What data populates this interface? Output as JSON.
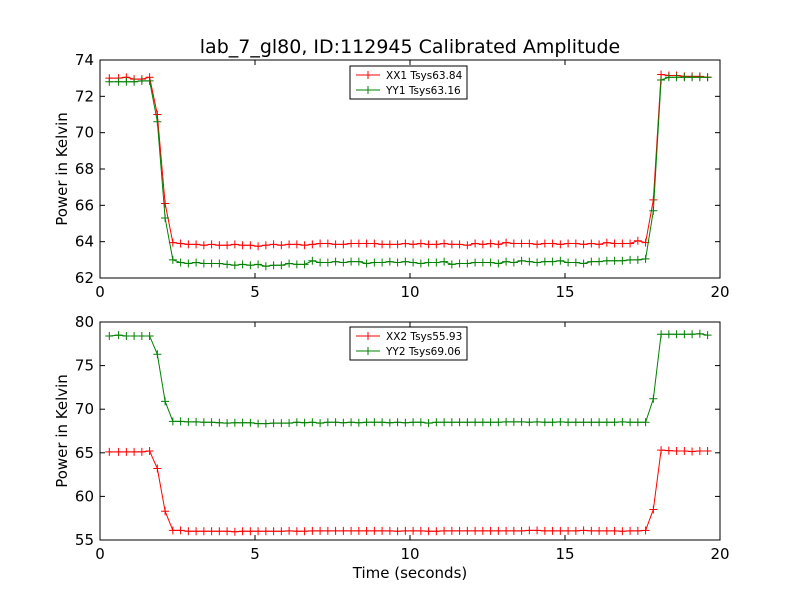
{
  "chart_data": [
    {
      "type": "line",
      "title": "lab_7_gl80, ID:112945 Calibrated Amplitude",
      "xlabel": "",
      "ylabel": "Power in Kelvin",
      "xlim": [
        0,
        20
      ],
      "ylim": [
        62,
        74
      ],
      "xticks": [
        0,
        5,
        10,
        15,
        20
      ],
      "yticks": [
        62,
        64,
        66,
        68,
        70,
        72,
        74
      ],
      "xtick_labels": [
        "0",
        "5",
        "10",
        "15",
        "20"
      ],
      "ytick_labels": [
        "62",
        "64",
        "66",
        "68",
        "70",
        "72",
        "74"
      ],
      "grid": false,
      "legend_position": "top-center",
      "x": [
        0.3,
        0.6,
        0.85,
        1.1,
        1.35,
        1.6,
        1.85,
        2.1,
        2.35,
        2.6,
        2.85,
        3.1,
        3.35,
        3.6,
        3.85,
        4.1,
        4.35,
        4.6,
        4.85,
        5.1,
        5.35,
        5.6,
        5.85,
        6.1,
        6.35,
        6.6,
        6.85,
        7.1,
        7.35,
        7.6,
        7.85,
        8.1,
        8.35,
        8.6,
        8.85,
        9.1,
        9.35,
        9.6,
        9.85,
        10.1,
        10.35,
        10.6,
        10.85,
        11.1,
        11.35,
        11.6,
        11.85,
        12.1,
        12.35,
        12.6,
        12.85,
        13.1,
        13.35,
        13.6,
        13.85,
        14.1,
        14.35,
        14.6,
        14.85,
        15.1,
        15.35,
        15.6,
        15.85,
        16.1,
        16.35,
        16.6,
        16.85,
        17.1,
        17.35,
        17.6,
        17.85,
        18.1,
        18.35,
        18.6,
        18.85,
        19.1,
        19.35,
        19.6
      ],
      "series": [
        {
          "name": "XX1 Tsys63.84",
          "color": "#ff0000",
          "values": [
            73.0,
            73.0,
            73.05,
            72.95,
            72.95,
            73.05,
            71.0,
            66.1,
            63.95,
            63.9,
            63.85,
            63.85,
            63.8,
            63.85,
            63.8,
            63.8,
            63.85,
            63.8,
            63.8,
            63.75,
            63.8,
            63.85,
            63.8,
            63.85,
            63.85,
            63.8,
            63.85,
            63.9,
            63.9,
            63.85,
            63.85,
            63.9,
            63.9,
            63.9,
            63.9,
            63.85,
            63.85,
            63.85,
            63.9,
            63.85,
            63.9,
            63.85,
            63.85,
            63.9,
            63.85,
            63.85,
            63.8,
            63.9,
            63.85,
            63.9,
            63.85,
            63.95,
            63.9,
            63.9,
            63.9,
            63.85,
            63.9,
            63.9,
            63.85,
            63.9,
            63.9,
            63.85,
            63.9,
            63.85,
            63.95,
            63.9,
            63.9,
            63.9,
            64.05,
            63.95,
            66.3,
            73.2,
            73.15,
            73.15,
            73.1,
            73.1,
            73.1,
            73.05
          ]
        },
        {
          "name": "YY1 Tsys63.16",
          "color": "#008000",
          "values": [
            72.8,
            72.8,
            72.8,
            72.8,
            72.85,
            72.85,
            70.6,
            65.3,
            63.0,
            62.85,
            62.8,
            62.85,
            62.8,
            62.8,
            62.8,
            62.75,
            62.7,
            62.75,
            62.7,
            62.75,
            62.65,
            62.7,
            62.7,
            62.8,
            62.75,
            62.75,
            62.95,
            62.85,
            62.85,
            62.9,
            62.85,
            62.9,
            62.9,
            62.8,
            62.85,
            62.85,
            62.9,
            62.85,
            62.9,
            62.85,
            62.8,
            62.85,
            62.85,
            62.9,
            62.75,
            62.8,
            62.8,
            62.85,
            62.85,
            62.85,
            62.8,
            62.9,
            62.85,
            62.95,
            62.9,
            62.85,
            62.9,
            62.9,
            62.95,
            62.85,
            62.85,
            62.8,
            62.9,
            62.9,
            62.95,
            62.95,
            62.95,
            63.0,
            63.0,
            63.05,
            65.7,
            72.9,
            73.05,
            73.05,
            73.05,
            73.05,
            73.05,
            73.05
          ]
        }
      ]
    },
    {
      "type": "line",
      "title": "",
      "xlabel": "Time (seconds)",
      "ylabel": "Power in Kelvin",
      "xlim": [
        0,
        20
      ],
      "ylim": [
        55,
        80
      ],
      "xticks": [
        0,
        5,
        10,
        15,
        20
      ],
      "yticks": [
        55,
        60,
        65,
        70,
        75,
        80
      ],
      "xtick_labels": [
        "0",
        "5",
        "10",
        "15",
        "20"
      ],
      "ytick_labels": [
        "55",
        "60",
        "65",
        "70",
        "75",
        "80"
      ],
      "grid": false,
      "legend_position": "top-center",
      "x": [
        0.3,
        0.6,
        0.85,
        1.1,
        1.35,
        1.6,
        1.85,
        2.1,
        2.35,
        2.6,
        2.85,
        3.1,
        3.35,
        3.6,
        3.85,
        4.1,
        4.35,
        4.6,
        4.85,
        5.1,
        5.35,
        5.6,
        5.85,
        6.1,
        6.35,
        6.6,
        6.85,
        7.1,
        7.35,
        7.6,
        7.85,
        8.1,
        8.35,
        8.6,
        8.85,
        9.1,
        9.35,
        9.6,
        9.85,
        10.1,
        10.35,
        10.6,
        10.85,
        11.1,
        11.35,
        11.6,
        11.85,
        12.1,
        12.35,
        12.6,
        12.85,
        13.1,
        13.35,
        13.6,
        13.85,
        14.1,
        14.35,
        14.6,
        14.85,
        15.1,
        15.35,
        15.6,
        15.85,
        16.1,
        16.35,
        16.6,
        16.85,
        17.1,
        17.35,
        17.6,
        17.85,
        18.1,
        18.35,
        18.6,
        18.85,
        19.1,
        19.35,
        19.6
      ],
      "series": [
        {
          "name": "XX2 Tsys55.93",
          "color": "#ff0000",
          "values": [
            65.1,
            65.1,
            65.1,
            65.1,
            65.1,
            65.2,
            63.2,
            58.3,
            56.1,
            56.1,
            56.0,
            56.0,
            56.0,
            56.0,
            56.0,
            56.0,
            55.95,
            56.0,
            56.0,
            56.0,
            56.0,
            56.0,
            56.0,
            56.05,
            56.0,
            56.0,
            56.05,
            56.05,
            56.05,
            56.05,
            56.05,
            56.05,
            56.05,
            56.05,
            56.05,
            56.05,
            56.05,
            56.0,
            56.05,
            56.05,
            56.05,
            56.0,
            56.0,
            56.05,
            56.05,
            56.05,
            56.05,
            56.05,
            56.05,
            56.05,
            56.05,
            56.05,
            56.05,
            56.05,
            56.1,
            56.1,
            56.05,
            56.05,
            56.05,
            56.05,
            56.05,
            56.1,
            56.05,
            56.05,
            56.05,
            56.05,
            56.0,
            56.05,
            56.05,
            56.1,
            58.5,
            65.3,
            65.25,
            65.2,
            65.2,
            65.15,
            65.2,
            65.2
          ]
        },
        {
          "name": "YY2 Tsys69.06",
          "color": "#008000",
          "values": [
            78.4,
            78.5,
            78.4,
            78.4,
            78.4,
            78.4,
            76.3,
            70.9,
            68.6,
            68.6,
            68.55,
            68.55,
            68.5,
            68.5,
            68.45,
            68.4,
            68.45,
            68.45,
            68.45,
            68.35,
            68.35,
            68.4,
            68.4,
            68.4,
            68.5,
            68.45,
            68.5,
            68.4,
            68.5,
            68.5,
            68.45,
            68.5,
            68.45,
            68.5,
            68.5,
            68.5,
            68.45,
            68.5,
            68.45,
            68.5,
            68.5,
            68.4,
            68.5,
            68.5,
            68.5,
            68.5,
            68.5,
            68.5,
            68.5,
            68.5,
            68.5,
            68.55,
            68.55,
            68.55,
            68.5,
            68.55,
            68.5,
            68.5,
            68.55,
            68.5,
            68.5,
            68.5,
            68.5,
            68.5,
            68.5,
            68.5,
            68.55,
            68.5,
            68.5,
            68.5,
            71.2,
            78.6,
            78.6,
            78.6,
            78.6,
            78.6,
            78.65,
            78.5
          ]
        }
      ]
    }
  ]
}
